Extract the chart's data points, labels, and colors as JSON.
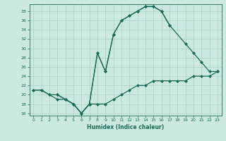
{
  "xlabel": "Humidex (Indice chaleur)",
  "xlim": [
    -0.5,
    23.5
  ],
  "ylim": [
    15.5,
    39.5
  ],
  "xticks": [
    0,
    1,
    2,
    3,
    4,
    5,
    6,
    7,
    8,
    9,
    10,
    11,
    12,
    13,
    14,
    15,
    16,
    17,
    18,
    19,
    20,
    21,
    22,
    23
  ],
  "yticks": [
    16,
    18,
    20,
    22,
    24,
    26,
    28,
    30,
    32,
    34,
    36,
    38
  ],
  "bg_color": "#cce9e1",
  "grid_color": "#aacfc8",
  "line_color": "#1a6b5a",
  "line1_x": [
    0,
    1,
    2,
    3,
    4,
    5,
    6,
    7,
    8,
    9,
    10,
    11,
    12,
    13,
    14,
    15,
    16,
    17,
    18,
    19,
    20,
    21,
    22,
    23
  ],
  "line1_y": [
    21,
    21,
    20,
    19,
    19,
    18,
    16,
    18,
    18,
    18,
    19,
    20,
    21,
    22,
    22,
    23,
    23,
    23,
    23,
    23,
    24,
    24,
    24,
    25
  ],
  "line2_x": [
    0,
    1,
    2,
    3,
    4,
    5,
    6,
    7,
    8,
    9,
    10,
    11,
    12,
    13,
    14,
    15,
    16,
    17
  ],
  "line2_y": [
    21,
    21,
    20,
    20,
    19,
    18,
    16,
    18,
    29,
    25,
    33,
    36,
    37,
    38,
    39,
    39,
    38,
    35
  ],
  "line3_x": [
    3,
    4,
    5,
    6,
    7,
    8,
    9,
    10,
    11,
    12,
    13,
    14,
    15,
    16,
    17,
    19,
    20,
    21,
    22,
    23
  ],
  "line3_y": [
    20,
    19,
    18,
    16,
    18,
    29,
    25,
    33,
    36,
    37,
    38,
    39,
    39,
    38,
    35,
    31,
    29,
    27,
    25,
    25
  ]
}
